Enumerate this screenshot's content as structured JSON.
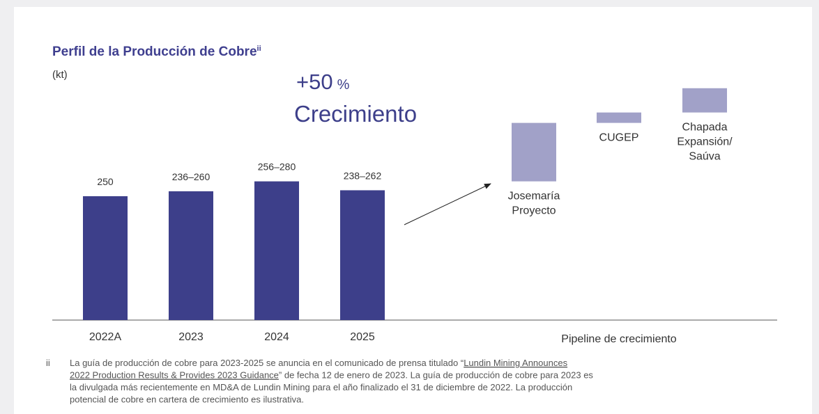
{
  "chart_data": {
    "type": "bar",
    "title": "Perfil de la Producción de Cobre",
    "title_superscript": "ii",
    "unit_label": "(kt)",
    "headline": {
      "value": "+50",
      "unit": "%",
      "text": "Crecimiento"
    },
    "categories": [
      "2022A",
      "2023",
      "2024",
      "2025"
    ],
    "values": [
      250,
      260,
      280,
      262
    ],
    "value_labels": [
      "250",
      "236–260",
      "256–280",
      "238–262"
    ],
    "color": "#3d3f8a",
    "pipeline": {
      "label": "Pipeline de crecimiento",
      "color": "#a1a1c8",
      "categories": [
        [
          "Josemaría",
          "Proyecto"
        ],
        [
          "CUGEP"
        ],
        [
          "Chapada",
          "Expansión/",
          "Saúva"
        ]
      ],
      "values": [
        118,
        21,
        49
      ]
    },
    "footnote": {
      "marker": "ii",
      "lines": [
        [
          "La guía de producción de cobre para 2023-2025 se anuncia en el comunicado de prensa titulado “",
          "Lundin Mining Announces "
        ],
        [
          "2022 Production Results & Provides 2023 Guidance",
          "” de fecha 12 de enero de 2023. La guía de producción de cobre para 2023 es"
        ],
        [
          "la divulgada más recientemente en MD&A de Lundin Mining para el año finalizado el 31 de diciembre de 2022. La producción"
        ],
        [
          "potencial de cobre en cartera de crecimiento es ilustrativa."
        ]
      ]
    }
  }
}
